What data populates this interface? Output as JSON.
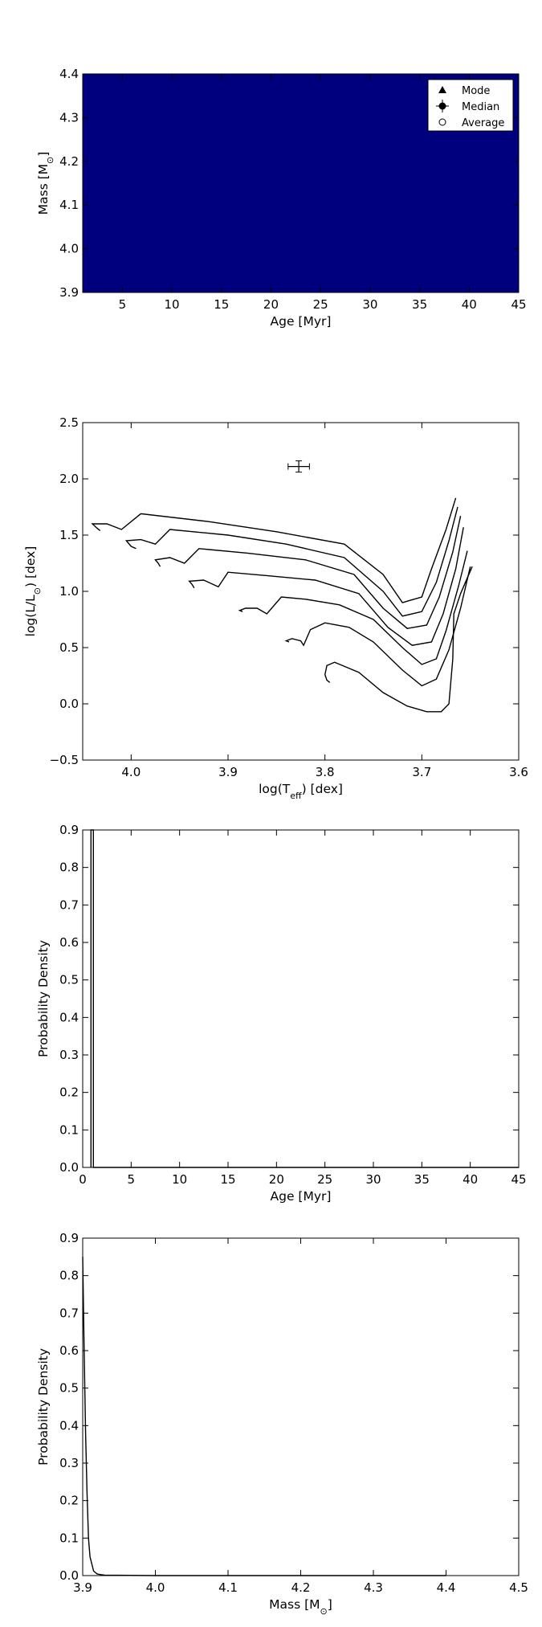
{
  "chart_data": [
    {
      "type": "heatmap",
      "xlabel": "Age [Myr]",
      "ylabel": "Mass [M_⊙]",
      "xlim": [
        1,
        45
      ],
      "ylim": [
        3.9,
        4.4
      ],
      "xticks": [
        5,
        10,
        15,
        20,
        25,
        30,
        35,
        40,
        45
      ],
      "yticks": [
        3.9,
        4.0,
        4.1,
        4.2,
        4.3,
        4.4
      ],
      "fill_color": "#00007f",
      "legend": {
        "placement": "top-right",
        "entries": [
          {
            "label": "Mode",
            "marker": "triangle"
          },
          {
            "label": "Median",
            "marker": "filled-circle-errorbar"
          },
          {
            "label": "Average",
            "marker": "open-circle"
          }
        ]
      }
    },
    {
      "type": "line",
      "xlabel": "log(T_eff) [dex]",
      "ylabel": "log(L/L_⊙) [dex]",
      "xlim": [
        4.05,
        3.6
      ],
      "ylim": [
        -0.5,
        2.5
      ],
      "xticks": [
        4.0,
        3.9,
        3.8,
        3.7,
        3.6
      ],
      "yticks": [
        -0.5,
        0.0,
        0.5,
        1.0,
        1.5,
        2.0,
        2.5
      ],
      "point": {
        "x": 3.827,
        "y": 2.11,
        "xerr": 0.011,
        "yerr": 0.05
      },
      "series": [
        {
          "x": [
            4.032,
            4.035,
            4.04,
            4.025,
            4.01,
            3.99,
            3.92,
            3.85,
            3.78,
            3.74,
            3.72,
            3.7,
            3.69,
            3.675,
            3.665
          ],
          "y": [
            1.54,
            1.56,
            1.6,
            1.6,
            1.55,
            1.69,
            1.62,
            1.53,
            1.42,
            1.15,
            0.9,
            0.95,
            1.2,
            1.55,
            1.83
          ]
        },
        {
          "x": [
            3.995,
            4.0,
            4.005,
            3.99,
            3.975,
            3.96,
            3.9,
            3.84,
            3.78,
            3.74,
            3.72,
            3.7,
            3.685,
            3.672,
            3.663
          ],
          "y": [
            1.38,
            1.4,
            1.45,
            1.46,
            1.42,
            1.55,
            1.5,
            1.42,
            1.3,
            1.0,
            0.78,
            0.82,
            1.08,
            1.45,
            1.75
          ]
        },
        {
          "x": [
            3.97,
            3.972,
            3.975,
            3.96,
            3.945,
            3.93,
            3.88,
            3.82,
            3.77,
            3.74,
            3.715,
            3.695,
            3.682,
            3.668,
            3.66
          ],
          "y": [
            1.22,
            1.25,
            1.28,
            1.3,
            1.25,
            1.38,
            1.34,
            1.28,
            1.15,
            0.85,
            0.67,
            0.7,
            0.95,
            1.35,
            1.67
          ]
        },
        {
          "x": [
            3.935,
            3.937,
            3.94,
            3.925,
            3.91,
            3.9,
            3.86,
            3.81,
            3.765,
            3.735,
            3.71,
            3.69,
            3.678,
            3.665,
            3.657
          ],
          "y": [
            1.03,
            1.06,
            1.09,
            1.1,
            1.04,
            1.17,
            1.14,
            1.1,
            0.98,
            0.68,
            0.52,
            0.55,
            0.8,
            1.2,
            1.57
          ]
        },
        {
          "x": [
            3.885,
            3.888,
            3.882,
            3.87,
            3.86,
            3.845,
            3.82,
            3.785,
            3.75,
            3.72,
            3.7,
            3.685,
            3.675,
            3.662,
            3.653
          ],
          "y": [
            0.82,
            0.83,
            0.85,
            0.85,
            0.8,
            0.95,
            0.93,
            0.88,
            0.75,
            0.5,
            0.35,
            0.4,
            0.65,
            1.05,
            1.36
          ]
        },
        {
          "x": [
            3.837,
            3.84,
            3.834,
            3.825,
            3.822,
            3.815,
            3.8,
            3.775,
            3.75,
            3.72,
            3.7,
            3.685,
            3.672,
            3.66,
            3.65
          ],
          "y": [
            0.55,
            0.56,
            0.58,
            0.56,
            0.52,
            0.66,
            0.72,
            0.68,
            0.55,
            0.3,
            0.16,
            0.22,
            0.48,
            0.85,
            1.22
          ]
        },
        {
          "x": [
            3.795,
            3.798,
            3.8,
            3.798,
            3.79,
            3.765,
            3.74,
            3.715,
            3.695,
            3.68,
            3.672,
            3.668,
            3.667,
            3.66,
            3.648
          ],
          "y": [
            0.19,
            0.21,
            0.26,
            0.34,
            0.37,
            0.28,
            0.1,
            -0.02,
            -0.07,
            -0.07,
            0.0,
            0.4,
            0.8,
            0.98,
            1.22
          ]
        }
      ]
    },
    {
      "type": "line",
      "xlabel": "Age [Myr]",
      "ylabel": "Probability Density",
      "xlim": [
        0,
        45
      ],
      "ylim": [
        0.0,
        0.9
      ],
      "xticks": [
        0,
        5,
        10,
        15,
        20,
        25,
        30,
        35,
        40,
        45
      ],
      "yticks": [
        0.0,
        0.1,
        0.2,
        0.3,
        0.4,
        0.5,
        0.6,
        0.7,
        0.8,
        0.9
      ],
      "series": [
        {
          "x": [
            0.85,
            0.85,
            1.1,
            1.1,
            45
          ],
          "y": [
            0.0,
            0.9,
            0.9,
            0.0,
            0.0
          ]
        }
      ]
    },
    {
      "type": "line",
      "xlabel": "Mass [M_⊙]",
      "ylabel": "Probability Density",
      "xlim": [
        3.9,
        4.5
      ],
      "ylim": [
        0.0,
        0.9
      ],
      "xticks": [
        3.9,
        4.0,
        4.1,
        4.2,
        4.3,
        4.4,
        4.5
      ],
      "yticks": [
        0.0,
        0.1,
        0.2,
        0.3,
        0.4,
        0.5,
        0.6,
        0.7,
        0.8,
        0.9
      ],
      "series": [
        {
          "x": [
            3.9,
            3.902,
            3.904,
            3.906,
            3.908,
            3.91,
            3.915,
            3.92,
            3.93,
            4.0,
            4.4
          ],
          "y": [
            0.85,
            0.6,
            0.38,
            0.22,
            0.1,
            0.05,
            0.012,
            0.004,
            0.001,
            0.0,
            0.0
          ]
        }
      ]
    }
  ]
}
